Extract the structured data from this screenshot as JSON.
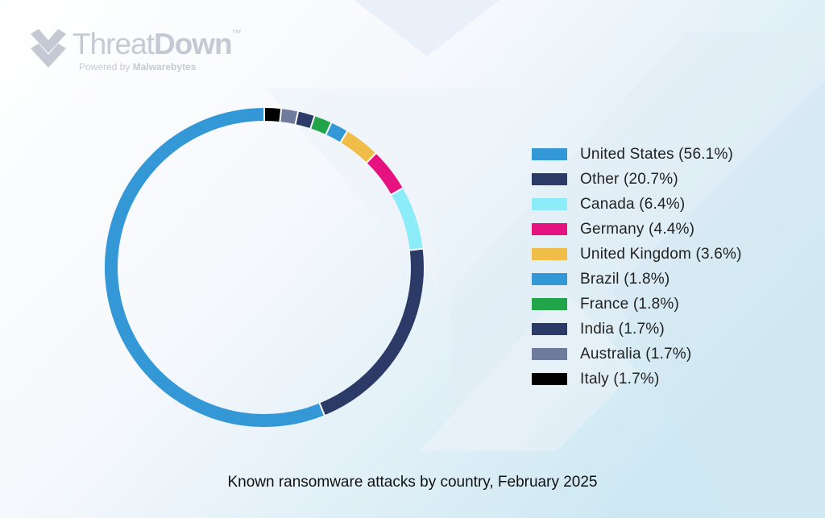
{
  "brand": {
    "name_part1": "Threat",
    "name_part2": "Down",
    "trademark": "™",
    "tagline_prefix": "Powered by ",
    "tagline_brand": "Malwarebytes",
    "color": "#c4c9d3"
  },
  "chart_data": {
    "type": "pie",
    "variant": "donut",
    "title": "Known ransomware attacks by country, February 2025",
    "legend_position": "right",
    "slices": [
      {
        "label": "United States (56.1%)",
        "value": 56.1,
        "color": "#3598d6"
      },
      {
        "label": "Other (20.7%)",
        "value": 20.7,
        "color": "#2c3a68"
      },
      {
        "label": "Canada (6.4%)",
        "value": 6.4,
        "color": "#8cecf7"
      },
      {
        "label": "Germany (4.4%)",
        "value": 4.4,
        "color": "#e5127f"
      },
      {
        "label": "United Kingdom (3.6%)",
        "value": 3.6,
        "color": "#f1bd49"
      },
      {
        "label": "Brazil (1.8%)",
        "value": 1.8,
        "color": "#3598d6"
      },
      {
        "label": "France (1.8%)",
        "value": 1.8,
        "color": "#22a44a"
      },
      {
        "label": "India (1.7%)",
        "value": 1.7,
        "color": "#2c3a68"
      },
      {
        "label": "Australia (1.7%)",
        "value": 1.7,
        "color": "#6e7b9c"
      },
      {
        "label": "Italy (1.7%)",
        "value": 1.7,
        "color": "#000000"
      }
    ]
  }
}
